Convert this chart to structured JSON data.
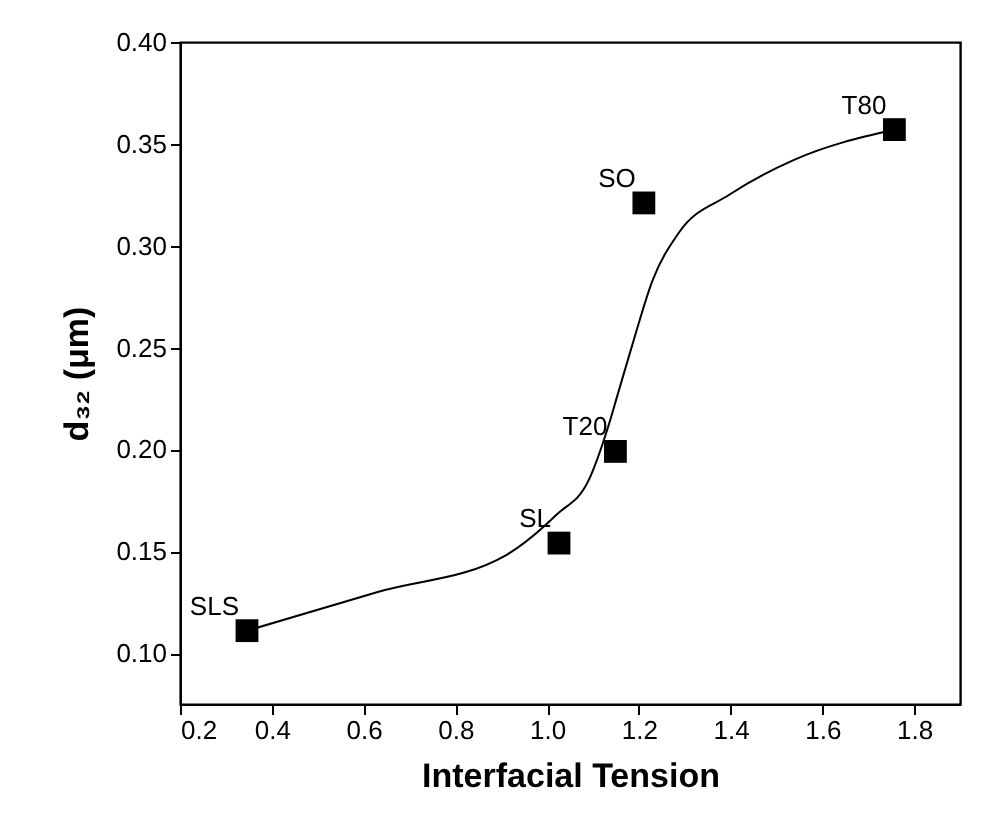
{
  "chart_data": {
    "type": "scatter",
    "xlabel": "Interfacial Tension",
    "ylabel": "d₃₂ (μm)",
    "xlim": [
      0.2,
      1.9
    ],
    "ylim": [
      0.075,
      0.4
    ],
    "xticks": [
      0.2,
      0.4,
      0.6,
      0.8,
      {
        "value": 1,
        "label": "1.0"
      },
      1.2,
      1.4,
      1.6,
      1.8
    ],
    "yticks": [
      {
        "value": 0.1,
        "label": "0.10"
      },
      0.15,
      {
        "value": 0.2,
        "label": "0.20"
      },
      0.25,
      {
        "value": 0.3,
        "label": "0.30"
      },
      0.35,
      {
        "value": 0.4,
        "label": "0.40"
      }
    ],
    "grid": false,
    "series": [
      {
        "marker": "square",
        "color": "#000000",
        "x": [
          0.346,
          1.026,
          1.149,
          1.211,
          1.757
        ],
        "values": [
          0.111,
          0.154,
          0.199,
          0.321,
          0.357
        ]
      },
      {
        "type": "line",
        "color": "#000000",
        "x": [
          0.346,
          0.631,
          0.91,
          1.021,
          1.091,
          1.133,
          1.154,
          1.188,
          1.23,
          1.286,
          1.397,
          1.537,
          1.757
        ],
        "values": [
          0.111,
          0.13,
          0.148,
          0.168,
          0.185,
          0.211,
          0.227,
          0.253,
          0.283,
          0.306,
          0.325,
          0.342,
          0.357
        ]
      }
    ],
    "annotations": [
      {
        "text": "SLS",
        "x": 0.346,
        "y": 0.111
      },
      {
        "text": "SL",
        "x": 1.026,
        "y": 0.154
      },
      {
        "text": "T20",
        "x": 1.149,
        "y": 0.199
      },
      {
        "text": "SO",
        "x": 1.211,
        "y": 0.321
      },
      {
        "text": "T80",
        "x": 1.757,
        "y": 0.357
      }
    ]
  }
}
